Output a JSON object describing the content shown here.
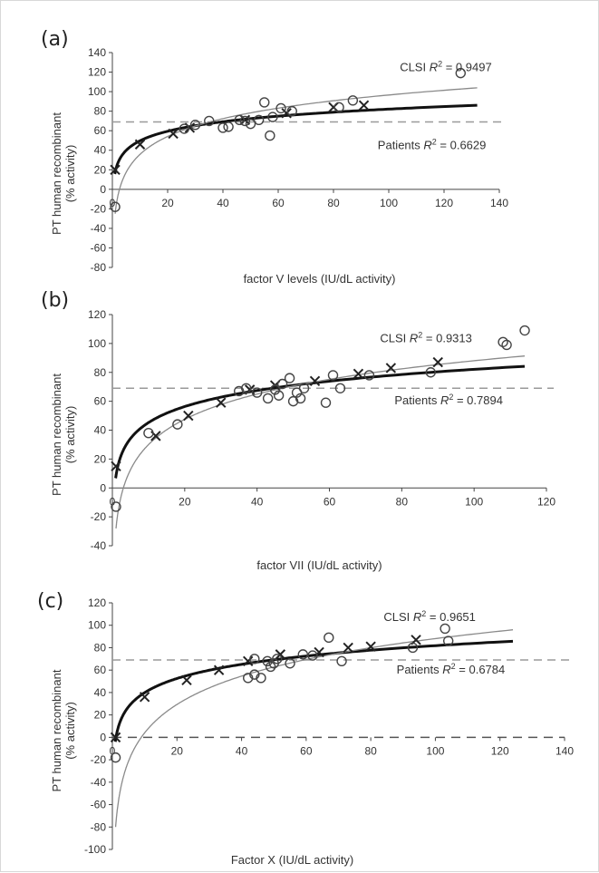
{
  "chart_data": [
    {
      "type": "scatter",
      "panel_label": "(a)",
      "xlabel": "factor V levels (IU/dL activity)",
      "ylabel": [
        "PT human recombinant",
        "(% activity)"
      ],
      "xlim": [
        0,
        140
      ],
      "ylim": [
        -80,
        140
      ],
      "xticks": [
        0,
        20,
        40,
        60,
        80,
        100,
        120,
        140
      ],
      "yticks": [
        -80,
        -60,
        -40,
        -20,
        0,
        20,
        40,
        60,
        80,
        100,
        120,
        140
      ],
      "reference_line_y": 69,
      "zero_line_dashed": false,
      "series": [
        {
          "name": "CLSI",
          "marker": "x",
          "points": [
            [
              1,
              20
            ],
            [
              10,
              46
            ],
            [
              22,
              57
            ],
            [
              28,
              63
            ],
            [
              48,
              71
            ],
            [
              63,
              78
            ],
            [
              80,
              84
            ],
            [
              91,
              86
            ]
          ]
        },
        {
          "name": "Patients",
          "marker": "o",
          "points": [
            [
              1,
              -18
            ],
            [
              26,
              62
            ],
            [
              30,
              66
            ],
            [
              35,
              70
            ],
            [
              40,
              63
            ],
            [
              42,
              64
            ],
            [
              46,
              71
            ],
            [
              48,
              70
            ],
            [
              50,
              67
            ],
            [
              53,
              71
            ],
            [
              55,
              89
            ],
            [
              57,
              55
            ],
            [
              58,
              74
            ],
            [
              61,
              83
            ],
            [
              65,
              80
            ],
            [
              82,
              84
            ],
            [
              87,
              91
            ],
            [
              126,
              119
            ]
          ]
        }
      ],
      "fits": [
        {
          "name": "CLSI",
          "style": "thick-black",
          "a": 17.2,
          "b": 14.1,
          "x_end": 132
        },
        {
          "name": "Patients",
          "style": "thin-grey",
          "a": -25,
          "b": 26.4,
          "x_end": 132
        }
      ],
      "annotations": [
        {
          "prefix": "CLSI ",
          "r": "R",
          "sup": "2",
          "suffix": " = 0.9497",
          "x": 104,
          "y": 121
        },
        {
          "prefix": "Patients ",
          "r": "R",
          "sup": "2",
          "suffix": " = 0.6629",
          "x": 96,
          "y": 41
        }
      ]
    },
    {
      "type": "scatter",
      "panel_label": "(b)",
      "xlabel": "factor VII (IU/dL activity)",
      "ylabel": [
        "PT human recombinant",
        "(% activity)"
      ],
      "xlim": [
        0,
        120
      ],
      "ylim": [
        -40,
        120
      ],
      "xticks": [
        0,
        20,
        40,
        60,
        80,
        100,
        120
      ],
      "yticks": [
        -40,
        -20,
        0,
        20,
        40,
        60,
        80,
        100,
        120
      ],
      "reference_line_y": 69,
      "zero_line_dashed": false,
      "series": [
        {
          "name": "CLSI",
          "marker": "x",
          "points": [
            [
              1,
              15
            ],
            [
              12,
              36
            ],
            [
              21,
              50
            ],
            [
              30,
              59
            ],
            [
              38,
              68
            ],
            [
              45,
              71
            ],
            [
              56,
              74
            ],
            [
              68,
              79
            ],
            [
              77,
              83
            ],
            [
              90,
              87
            ]
          ]
        },
        {
          "name": "Patients",
          "marker": "o",
          "points": [
            [
              1,
              -13
            ],
            [
              10,
              38
            ],
            [
              18,
              44
            ],
            [
              35,
              67
            ],
            [
              37,
              69
            ],
            [
              40,
              66
            ],
            [
              43,
              62
            ],
            [
              45,
              68
            ],
            [
              46,
              64
            ],
            [
              47,
              72
            ],
            [
              49,
              76
            ],
            [
              50,
              60
            ],
            [
              51,
              66
            ],
            [
              52,
              62
            ],
            [
              53,
              69
            ],
            [
              59,
              59
            ],
            [
              61,
              78
            ],
            [
              63,
              69
            ],
            [
              71,
              78
            ],
            [
              88,
              80
            ],
            [
              108,
              101
            ],
            [
              109,
              99
            ],
            [
              114,
              109
            ]
          ]
        }
      ],
      "fits": [
        {
          "name": "CLSI",
          "style": "thick-black",
          "a": 8.4,
          "b": 16.0,
          "x_end": 114
        },
        {
          "name": "Patients",
          "style": "thin-grey",
          "a": -28,
          "b": 25.2,
          "x_end": 114
        }
      ],
      "annotations": [
        {
          "prefix": "CLSI ",
          "r": "R",
          "sup": "2",
          "suffix": " = 0.9313",
          "x": 74,
          "y": 101
        },
        {
          "prefix": "Patients  ",
          "r": "R",
          "sup": "2",
          "suffix": " = 0.7894",
          "x": 78,
          "y": 58
        }
      ]
    },
    {
      "type": "scatter",
      "panel_label": "(c)",
      "xlabel": "Factor X (IU/dL activity)",
      "ylabel": [
        "PT human recombinant",
        "(% activity)"
      ],
      "xlim": [
        0,
        140
      ],
      "ylim": [
        -100,
        120
      ],
      "xticks": [
        0,
        20,
        40,
        60,
        80,
        100,
        120,
        140
      ],
      "yticks": [
        -100,
        -80,
        -60,
        -40,
        -20,
        0,
        20,
        40,
        60,
        80,
        100,
        120
      ],
      "reference_line_y": 69,
      "zero_line_dashed": true,
      "series": [
        {
          "name": "CLSI",
          "marker": "x",
          "points": [
            [
              1,
              0
            ],
            [
              10,
              36
            ],
            [
              23,
              51
            ],
            [
              33,
              60
            ],
            [
              42,
              68
            ],
            [
              52,
              74
            ],
            [
              64,
              76
            ],
            [
              73,
              80
            ],
            [
              80,
              81
            ],
            [
              94,
              87
            ]
          ]
        },
        {
          "name": "Patients",
          "marker": "o",
          "points": [
            [
              1,
              -18
            ],
            [
              42,
              53
            ],
            [
              44,
              56
            ],
            [
              44,
              70
            ],
            [
              46,
              53
            ],
            [
              48,
              68
            ],
            [
              49,
              63
            ],
            [
              50,
              66
            ],
            [
              51,
              70
            ],
            [
              55,
              66
            ],
            [
              59,
              74
            ],
            [
              62,
              73
            ],
            [
              67,
              89
            ],
            [
              71,
              68
            ],
            [
              93,
              80
            ],
            [
              103,
              97
            ],
            [
              104,
              86
            ]
          ]
        }
      ],
      "fits": [
        {
          "name": "CLSI",
          "style": "thick-black",
          "a": -2,
          "b": 18.2,
          "x_end": 124
        },
        {
          "name": "Patients",
          "style": "thin-grey",
          "a": -80,
          "b": 36.5,
          "x_end": 124
        }
      ],
      "annotations": [
        {
          "prefix": "CLSI ",
          "r": "R",
          "sup": "2",
          "suffix": " = 0.9651",
          "x": 84,
          "y": 104
        },
        {
          "prefix": "Patients  ",
          "r": "R",
          "sup": "2",
          "suffix": " = 0.6784",
          "x": 88,
          "y": 57
        }
      ]
    }
  ]
}
